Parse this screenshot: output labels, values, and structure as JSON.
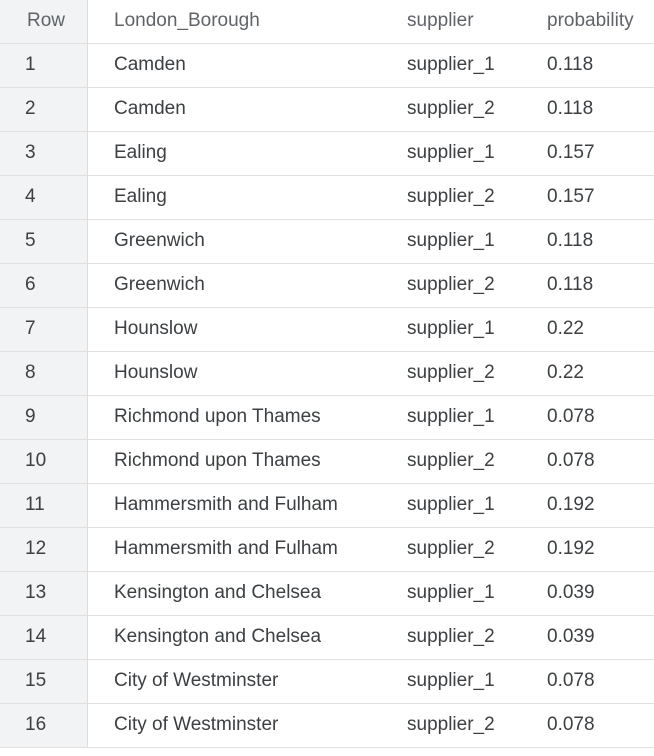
{
  "results": {
    "headers": {
      "row": "Row",
      "borough": "London_Borough",
      "supplier": "supplier",
      "probability": "probability"
    },
    "rows": [
      {
        "row": "1",
        "borough": "Camden",
        "supplier": "supplier_1",
        "probability": "0.118"
      },
      {
        "row": "2",
        "borough": "Camden",
        "supplier": "supplier_2",
        "probability": "0.118"
      },
      {
        "row": "3",
        "borough": "Ealing",
        "supplier": "supplier_1",
        "probability": "0.157"
      },
      {
        "row": "4",
        "borough": "Ealing",
        "supplier": "supplier_2",
        "probability": "0.157"
      },
      {
        "row": "5",
        "borough": "Greenwich",
        "supplier": "supplier_1",
        "probability": "0.118"
      },
      {
        "row": "6",
        "borough": "Greenwich",
        "supplier": "supplier_2",
        "probability": "0.118"
      },
      {
        "row": "7",
        "borough": "Hounslow",
        "supplier": "supplier_1",
        "probability": "0.22"
      },
      {
        "row": "8",
        "borough": "Hounslow",
        "supplier": "supplier_2",
        "probability": "0.22"
      },
      {
        "row": "9",
        "borough": "Richmond upon Thames",
        "supplier": "supplier_1",
        "probability": "0.078"
      },
      {
        "row": "10",
        "borough": "Richmond upon Thames",
        "supplier": "supplier_2",
        "probability": "0.078"
      },
      {
        "row": "11",
        "borough": "Hammersmith and Fulham",
        "supplier": "supplier_1",
        "probability": "0.192"
      },
      {
        "row": "12",
        "borough": "Hammersmith and Fulham",
        "supplier": "supplier_2",
        "probability": "0.192"
      },
      {
        "row": "13",
        "borough": "Kensington and Chelsea",
        "supplier": "supplier_1",
        "probability": "0.039"
      },
      {
        "row": "14",
        "borough": "Kensington and Chelsea",
        "supplier": "supplier_2",
        "probability": "0.039"
      },
      {
        "row": "15",
        "borough": "City of Westminster",
        "supplier": "supplier_1",
        "probability": "0.078"
      },
      {
        "row": "16",
        "borough": "City of Westminster",
        "supplier": "supplier_2",
        "probability": "0.078"
      }
    ]
  }
}
